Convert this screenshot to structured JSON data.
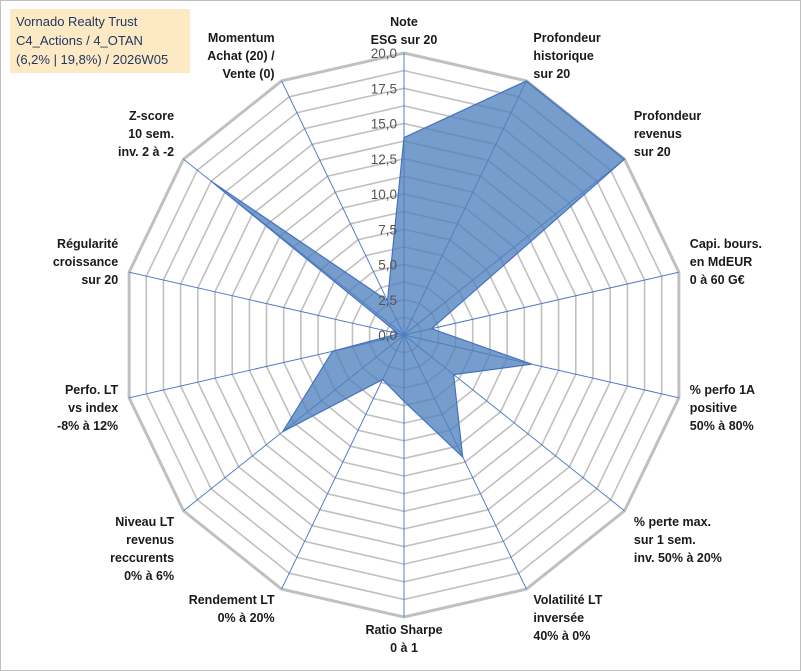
{
  "title_box": {
    "line1": "Vornado Realty Trust",
    "line2": "C4_Actions / 4_OTAN",
    "line3": "(6,2% | 19,8%) / 2026W05"
  },
  "colors": {
    "fill": "#4f81bd",
    "stroke": "#4472c4",
    "grid": "#c0c0c0",
    "spoke": "#4472c4",
    "title_bg": "#fde9c3"
  },
  "chart_data": {
    "type": "radar",
    "title": "",
    "rmin": 0,
    "rmax": 20,
    "ticks": [
      "0,0",
      "2,5",
      "5,0",
      "7,5",
      "10,0",
      "12,5",
      "15,0",
      "17,5",
      "20,0"
    ],
    "tick_values": [
      0,
      2.5,
      5,
      7.5,
      10,
      12.5,
      15,
      17.5,
      20
    ],
    "grid": true,
    "axes": [
      [
        "Note",
        "ESG sur 20"
      ],
      [
        "Profondeur",
        "historique",
        "sur 20"
      ],
      [
        "Profondeur",
        "revenus",
        "sur 20"
      ],
      [
        "Capi. bours.",
        "en MdEUR",
        "0 à 60 G€"
      ],
      [
        "% perfo 1A",
        "positive",
        "50% à 80%"
      ],
      [
        "% perte max.",
        "sur 1 sem.",
        "inv. 50% à 20%"
      ],
      [
        "Volatilité LT",
        "inversée",
        "40% à 0%"
      ],
      [
        "Ratio Sharpe",
        "0 à 1"
      ],
      [
        "Rendement LT",
        "0% à 20%"
      ],
      [
        "Niveau LT",
        "revenus",
        "reccurents",
        "0% à 6%"
      ],
      [
        "Perfo. LT",
        "vs index",
        "-8% à 12%"
      ],
      [
        "Régularité",
        "croissance",
        "sur 20"
      ],
      [
        "Z-score",
        "10 sem.",
        "inv. 2 à -2"
      ],
      [
        "Momentum",
        "Achat (20) /",
        "Vente (0)"
      ]
    ],
    "series": [
      {
        "values": [
          14,
          20,
          20,
          2,
          9.3,
          4.5,
          9.6,
          4.7,
          3.5,
          11,
          5.2,
          0.4,
          17.5,
          2.7
        ]
      }
    ]
  }
}
